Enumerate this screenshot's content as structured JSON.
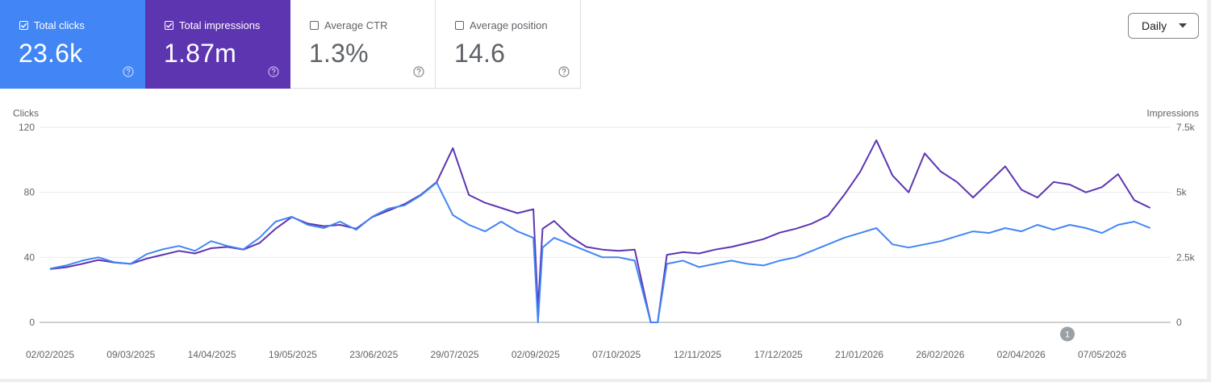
{
  "metrics": [
    {
      "label": "Total clicks",
      "value": "23.6k",
      "checked": true,
      "color": "#4285f4"
    },
    {
      "label": "Total impressions",
      "value": "1.87m",
      "checked": true,
      "color": "#5e35b1"
    },
    {
      "label": "Average CTR",
      "value": "1.3%",
      "checked": false
    },
    {
      "label": "Average position",
      "value": "14.6",
      "checked": false
    }
  ],
  "help_icon": "question-circle-icon",
  "period_select": {
    "value": "Daily",
    "icon": "dropdown-arrow-icon"
  },
  "annotation_marker": "1",
  "chart_data": {
    "type": "line",
    "x_start": "2025-02-02",
    "x_end": "2026-05-31",
    "xlabel": "",
    "xticks": [
      "02/02/2025",
      "09/03/2025",
      "14/04/2025",
      "19/05/2025",
      "23/06/2025",
      "29/07/2025",
      "02/09/2025",
      "07/10/2025",
      "12/11/2025",
      "17/12/2025",
      "21/01/2026",
      "26/02/2026",
      "02/04/2026",
      "07/05/2026"
    ],
    "left_axis": {
      "label": "Clicks",
      "ticks": [
        "120",
        "80",
        "40",
        "0"
      ],
      "ylim": [
        0,
        120
      ]
    },
    "right_axis": {
      "label": "Impressions",
      "ticks": [
        "7.5k",
        "5k",
        "2.5k",
        "0"
      ],
      "ylim": [
        0,
        7500
      ]
    },
    "grid": true,
    "series": [
      {
        "name": "Total clicks",
        "axis": "left",
        "color": "#4285f4",
        "points": [
          [
            "2025-02-02",
            33
          ],
          [
            "2025-02-09",
            35
          ],
          [
            "2025-02-16",
            38
          ],
          [
            "2025-02-23",
            40
          ],
          [
            "2025-03-02",
            37
          ],
          [
            "2025-03-09",
            36
          ],
          [
            "2025-03-16",
            42
          ],
          [
            "2025-03-23",
            45
          ],
          [
            "2025-03-30",
            47
          ],
          [
            "2025-04-06",
            44
          ],
          [
            "2025-04-13",
            50
          ],
          [
            "2025-04-20",
            47
          ],
          [
            "2025-04-27",
            45
          ],
          [
            "2025-05-04",
            52
          ],
          [
            "2025-05-11",
            62
          ],
          [
            "2025-05-18",
            65
          ],
          [
            "2025-05-25",
            60
          ],
          [
            "2025-06-01",
            58
          ],
          [
            "2025-06-08",
            62
          ],
          [
            "2025-06-15",
            57
          ],
          [
            "2025-06-22",
            65
          ],
          [
            "2025-06-29",
            70
          ],
          [
            "2025-07-06",
            72
          ],
          [
            "2025-07-13",
            78
          ],
          [
            "2025-07-20",
            86
          ],
          [
            "2025-07-27",
            66
          ],
          [
            "2025-08-03",
            60
          ],
          [
            "2025-08-10",
            56
          ],
          [
            "2025-08-17",
            62
          ],
          [
            "2025-08-24",
            56
          ],
          [
            "2025-08-31",
            52
          ],
          [
            "2025-09-02",
            0
          ],
          [
            "2025-09-04",
            46
          ],
          [
            "2025-09-09",
            52
          ],
          [
            "2025-09-16",
            48
          ],
          [
            "2025-09-23",
            44
          ],
          [
            "2025-09-30",
            40
          ],
          [
            "2025-10-07",
            40
          ],
          [
            "2025-10-14",
            38
          ],
          [
            "2025-10-21",
            0
          ],
          [
            "2025-10-24",
            0
          ],
          [
            "2025-10-28",
            36
          ],
          [
            "2025-11-04",
            38
          ],
          [
            "2025-11-11",
            34
          ],
          [
            "2025-11-18",
            36
          ],
          [
            "2025-11-25",
            38
          ],
          [
            "2025-12-02",
            36
          ],
          [
            "2025-12-09",
            35
          ],
          [
            "2025-12-16",
            38
          ],
          [
            "2025-12-23",
            40
          ],
          [
            "2025-12-30",
            44
          ],
          [
            "2026-01-06",
            48
          ],
          [
            "2026-01-13",
            52
          ],
          [
            "2026-01-20",
            55
          ],
          [
            "2026-01-27",
            58
          ],
          [
            "2026-02-03",
            48
          ],
          [
            "2026-02-10",
            46
          ],
          [
            "2026-02-17",
            48
          ],
          [
            "2026-02-24",
            50
          ],
          [
            "2026-03-03",
            53
          ],
          [
            "2026-03-10",
            56
          ],
          [
            "2026-03-17",
            55
          ],
          [
            "2026-03-24",
            58
          ],
          [
            "2026-03-31",
            56
          ],
          [
            "2026-04-07",
            60
          ],
          [
            "2026-04-14",
            57
          ],
          [
            "2026-04-21",
            60
          ],
          [
            "2026-04-28",
            58
          ],
          [
            "2026-05-05",
            55
          ],
          [
            "2026-05-12",
            60
          ],
          [
            "2026-05-19",
            62
          ],
          [
            "2026-05-26",
            58
          ]
        ]
      },
      {
        "name": "Total impressions",
        "axis": "right",
        "color": "#5e35b1",
        "points": [
          [
            "2025-02-02",
            2050
          ],
          [
            "2025-02-09",
            2120
          ],
          [
            "2025-02-16",
            2250
          ],
          [
            "2025-02-23",
            2400
          ],
          [
            "2025-03-02",
            2300
          ],
          [
            "2025-03-09",
            2250
          ],
          [
            "2025-03-16",
            2450
          ],
          [
            "2025-03-23",
            2600
          ],
          [
            "2025-03-30",
            2750
          ],
          [
            "2025-04-06",
            2650
          ],
          [
            "2025-04-13",
            2850
          ],
          [
            "2025-04-20",
            2900
          ],
          [
            "2025-04-27",
            2800
          ],
          [
            "2025-05-04",
            3050
          ],
          [
            "2025-05-11",
            3600
          ],
          [
            "2025-05-18",
            4050
          ],
          [
            "2025-05-25",
            3800
          ],
          [
            "2025-06-01",
            3700
          ],
          [
            "2025-06-08",
            3750
          ],
          [
            "2025-06-15",
            3600
          ],
          [
            "2025-06-22",
            4050
          ],
          [
            "2025-06-29",
            4300
          ],
          [
            "2025-07-06",
            4550
          ],
          [
            "2025-07-13",
            4900
          ],
          [
            "2025-07-20",
            5400
          ],
          [
            "2025-07-27",
            6700
          ],
          [
            "2025-08-03",
            4900
          ],
          [
            "2025-08-10",
            4600
          ],
          [
            "2025-08-17",
            4400
          ],
          [
            "2025-08-24",
            4200
          ],
          [
            "2025-08-31",
            4350
          ],
          [
            "2025-09-02",
            500
          ],
          [
            "2025-09-04",
            3600
          ],
          [
            "2025-09-09",
            3900
          ],
          [
            "2025-09-16",
            3300
          ],
          [
            "2025-09-23",
            2900
          ],
          [
            "2025-09-30",
            2800
          ],
          [
            "2025-10-07",
            2750
          ],
          [
            "2025-10-14",
            2800
          ],
          [
            "2025-10-21",
            0
          ],
          [
            "2025-10-24",
            0
          ],
          [
            "2025-10-28",
            2600
          ],
          [
            "2025-11-04",
            2700
          ],
          [
            "2025-11-11",
            2650
          ],
          [
            "2025-11-18",
            2800
          ],
          [
            "2025-11-25",
            2900
          ],
          [
            "2025-12-02",
            3050
          ],
          [
            "2025-12-09",
            3200
          ],
          [
            "2025-12-16",
            3450
          ],
          [
            "2025-12-23",
            3600
          ],
          [
            "2025-12-30",
            3800
          ],
          [
            "2026-01-06",
            4100
          ],
          [
            "2026-01-13",
            4900
          ],
          [
            "2026-01-20",
            5800
          ],
          [
            "2026-01-27",
            7000
          ],
          [
            "2026-02-03",
            5650
          ],
          [
            "2026-02-10",
            5000
          ],
          [
            "2026-02-17",
            6500
          ],
          [
            "2026-02-24",
            5800
          ],
          [
            "2026-03-03",
            5400
          ],
          [
            "2026-03-10",
            4800
          ],
          [
            "2026-03-17",
            5400
          ],
          [
            "2026-03-24",
            6000
          ],
          [
            "2026-03-31",
            5100
          ],
          [
            "2026-04-07",
            4800
          ],
          [
            "2026-04-14",
            5400
          ],
          [
            "2026-04-21",
            5300
          ],
          [
            "2026-04-28",
            5000
          ],
          [
            "2026-05-05",
            5200
          ],
          [
            "2026-05-12",
            5700
          ],
          [
            "2026-05-19",
            4700
          ],
          [
            "2026-05-26",
            4400
          ]
        ]
      }
    ]
  }
}
